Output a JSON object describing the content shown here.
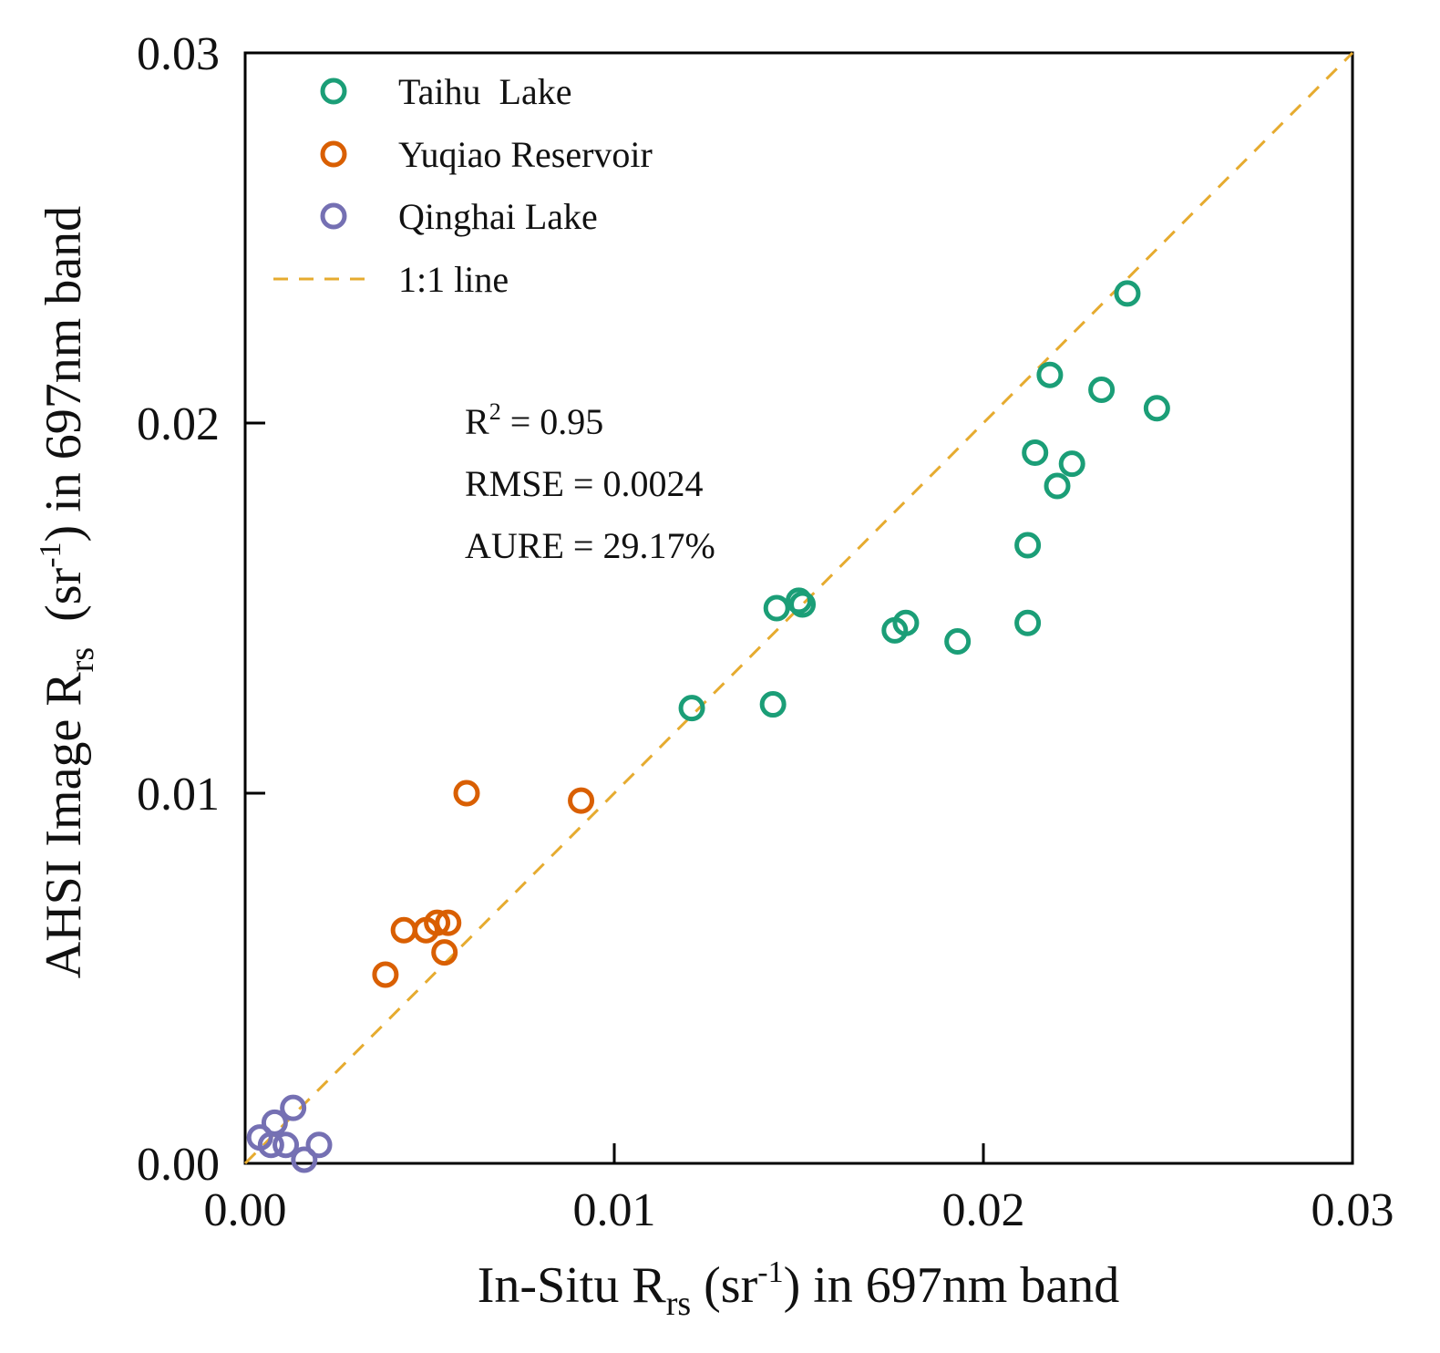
{
  "chart_data": {
    "type": "scatter",
    "title": "",
    "xlabel": {
      "main": "In-Situ R",
      "sub": "rs",
      "unit_open": " (sr",
      "unit_sup": "-1",
      "unit_close": ") in 697nm band"
    },
    "ylabel": {
      "main": "AHSI Image R",
      "sub": "rs",
      "unit_open": "  (sr",
      "unit_sup": "-1",
      "unit_close": ") in 697nm band"
    },
    "xlim": [
      0,
      0.03
    ],
    "ylim": [
      0,
      0.03
    ],
    "xticks": [
      {
        "value": 0.0,
        "label": "0.00"
      },
      {
        "value": 0.01,
        "label": "0.01"
      },
      {
        "value": 0.02,
        "label": "0.02"
      },
      {
        "value": 0.03,
        "label": "0.03"
      }
    ],
    "yticks": [
      {
        "value": 0.0,
        "label": "0.00"
      },
      {
        "value": 0.01,
        "label": "0.01"
      },
      {
        "value": 0.02,
        "label": "0.02"
      },
      {
        "value": 0.03,
        "label": "0.03"
      }
    ],
    "grid": false,
    "legend_position": "top-left",
    "series": [
      {
        "name": "Taihu  Lake",
        "color": "#1b9e77",
        "points": [
          {
            "x": 0.0239,
            "y": 0.0235
          },
          {
            "x": 0.0218,
            "y": 0.0213
          },
          {
            "x": 0.0232,
            "y": 0.0209
          },
          {
            "x": 0.0247,
            "y": 0.0204
          },
          {
            "x": 0.0214,
            "y": 0.0192
          },
          {
            "x": 0.0224,
            "y": 0.0189
          },
          {
            "x": 0.022,
            "y": 0.0183
          },
          {
            "x": 0.0212,
            "y": 0.0167
          },
          {
            "x": 0.0144,
            "y": 0.015
          },
          {
            "x": 0.015,
            "y": 0.0152
          },
          {
            "x": 0.0151,
            "y": 0.0151
          },
          {
            "x": 0.0176,
            "y": 0.0144
          },
          {
            "x": 0.0179,
            "y": 0.0146
          },
          {
            "x": 0.0193,
            "y": 0.0141
          },
          {
            "x": 0.0212,
            "y": 0.0146
          },
          {
            "x": 0.0121,
            "y": 0.0123
          },
          {
            "x": 0.0143,
            "y": 0.0124
          }
        ]
      },
      {
        "name": "Yuqiao Reservoir",
        "color": "#d95f02",
        "points": [
          {
            "x": 0.006,
            "y": 0.01
          },
          {
            "x": 0.0091,
            "y": 0.0098
          },
          {
            "x": 0.0043,
            "y": 0.0063
          },
          {
            "x": 0.0049,
            "y": 0.0063
          },
          {
            "x": 0.0052,
            "y": 0.0065
          },
          {
            "x": 0.0055,
            "y": 0.0065
          },
          {
            "x": 0.0054,
            "y": 0.0057
          },
          {
            "x": 0.0038,
            "y": 0.0051
          }
        ]
      },
      {
        "name": "Qinghai Lake",
        "color": "#7570b3",
        "points": [
          {
            "x": 0.0013,
            "y": 0.0015
          },
          {
            "x": 0.0008,
            "y": 0.0011
          },
          {
            "x": 0.0004,
            "y": 0.0007
          },
          {
            "x": 0.0007,
            "y": 0.0005
          },
          {
            "x": 0.0011,
            "y": 0.0005
          },
          {
            "x": 0.002,
            "y": 0.0005
          },
          {
            "x": 0.0016,
            "y": 0.0001
          }
        ]
      }
    ],
    "reference_line": {
      "name": "1:1 line",
      "color": "#e6ab2f",
      "from": [
        0,
        0
      ],
      "to": [
        0.03,
        0.03
      ]
    },
    "annotations": {
      "r2_main": "R",
      "r2_sup": "2",
      "r2_rest": " = 0.95",
      "rmse": "RMSE = 0.0024",
      "aure": "AURE = 29.17%"
    }
  }
}
